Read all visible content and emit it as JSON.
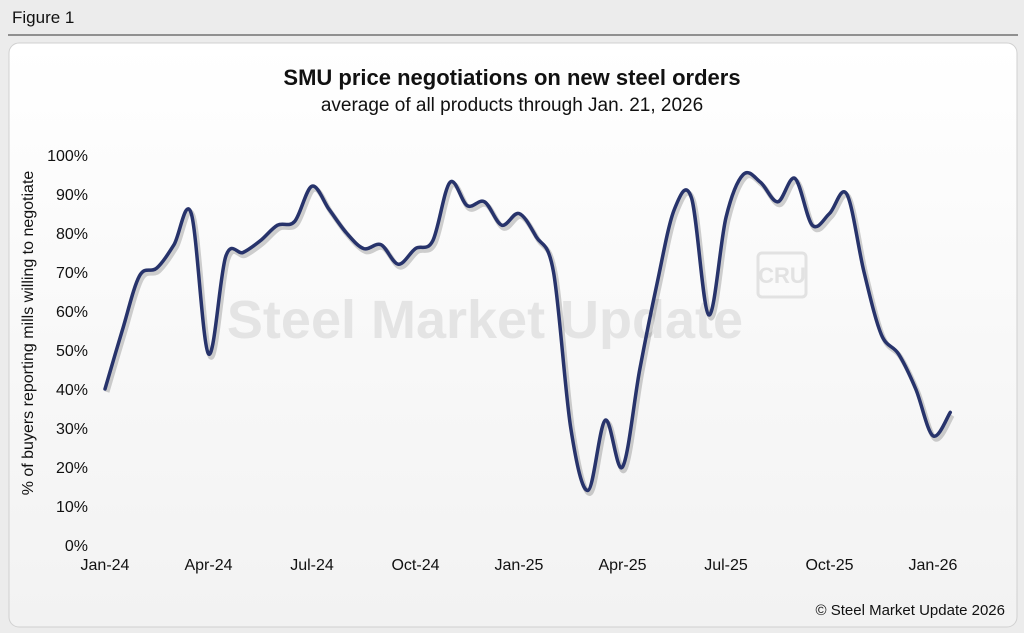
{
  "figure_label": "Figure 1",
  "chart_data": {
    "type": "line",
    "title": "SMU price negotiations on new steel orders",
    "subtitle": "average of all products through Jan. 21, 2026",
    "y_label": "% of buyers reporting mills willing to negotiate",
    "watermark": "Steel Market Update",
    "watermark_logo": "CRU",
    "source": "© Steel Market Update 2026",
    "categories": [
      "Jan-24",
      null,
      null,
      null,
      null,
      null,
      "Apr-24",
      null,
      null,
      null,
      null,
      null,
      "Jul-24",
      null,
      null,
      null,
      null,
      null,
      "Oct-24",
      null,
      null,
      null,
      null,
      null,
      "Jan-25",
      null,
      null,
      null,
      null,
      null,
      "Apr-25",
      null,
      null,
      null,
      null,
      null,
      "Jul-25",
      null,
      null,
      null,
      null,
      null,
      "Oct-25",
      null,
      null,
      null,
      null,
      null,
      "Jan-26",
      null
    ],
    "series": [
      {
        "name": "SMU price negotiations",
        "color": "#27336b",
        "values": [
          40,
          55,
          69,
          71,
          77,
          85,
          49,
          74,
          75,
          78,
          82,
          83,
          92,
          86,
          80,
          76,
          77,
          72,
          76,
          78,
          93,
          87,
          88,
          82,
          85,
          79,
          70,
          30,
          14,
          32,
          20,
          45,
          67,
          86,
          89,
          59,
          84,
          95,
          93,
          88,
          94,
          82,
          85,
          90,
          70,
          54,
          49,
          40,
          28,
          34
        ]
      }
    ],
    "ylim": [
      0,
      100
    ],
    "yticks": [
      {
        "value": 0,
        "label": "0%"
      },
      {
        "value": 10,
        "label": "10%"
      },
      {
        "value": 20,
        "label": "20%"
      },
      {
        "value": 30,
        "label": "30%"
      },
      {
        "value": 40,
        "label": "40%"
      },
      {
        "value": 50,
        "label": "50%"
      },
      {
        "value": 60,
        "label": "60%"
      },
      {
        "value": 70,
        "label": "70%"
      },
      {
        "value": 80,
        "label": "80%"
      },
      {
        "value": 90,
        "label": "90%"
      },
      {
        "value": 100,
        "label": "100%"
      }
    ],
    "grid": false
  }
}
